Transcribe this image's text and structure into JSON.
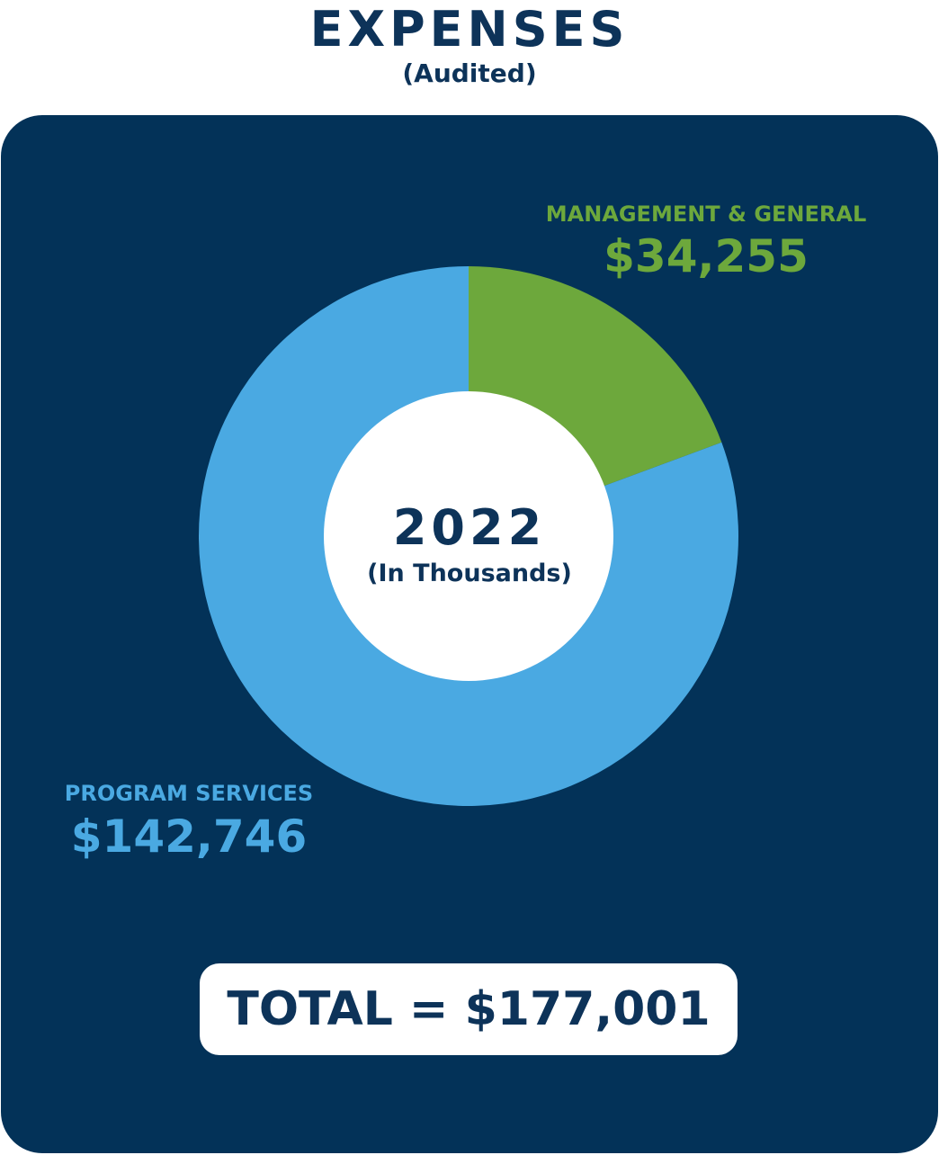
{
  "header": {
    "title": "EXPENSES",
    "subtitle": "(Audited)"
  },
  "colors": {
    "background_panel": "#033258",
    "program_services": "#4aa9e2",
    "management_general": "#6da83c",
    "navy_text": "#0d3359",
    "white": "#ffffff"
  },
  "chart_data": {
    "type": "pie",
    "donut": true,
    "title": "EXPENSES",
    "subtitle": "(Audited)",
    "center_label": "2022",
    "center_sublabel": "(In Thousands)",
    "unit": "USD thousands",
    "slices": [
      {
        "label": "MANAGEMENT & GENERAL",
        "value": 34255,
        "display_value": "$34,255",
        "color": "#6da83c"
      },
      {
        "label": "PROGRAM SERVICES",
        "value": 142746,
        "display_value": "$142,746",
        "color": "#4aa9e2"
      }
    ],
    "total_text": "TOTAL = $177,001",
    "total": 177001,
    "legend": "none"
  }
}
